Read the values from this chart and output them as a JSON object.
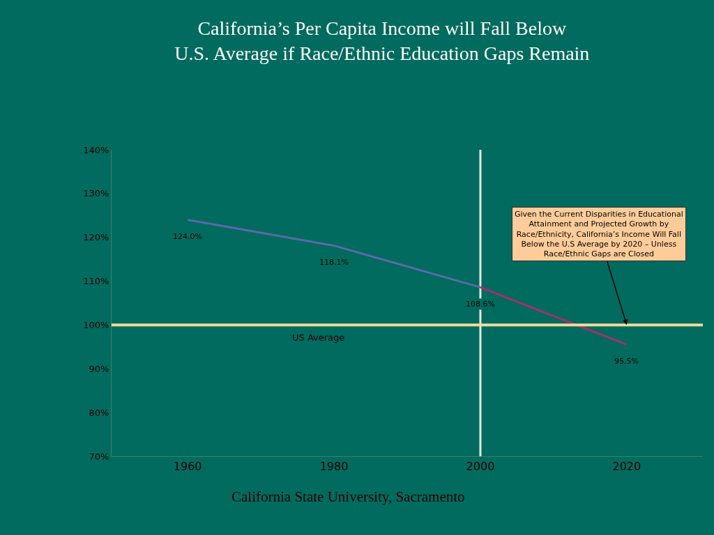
{
  "chart_data": {
    "type": "line",
    "title": "California’s Per Capita Income will Fall Below\nU.S. Average if Race/Ethnic Education Gaps Remain",
    "categories": [
      "1960",
      "1980",
      "2000",
      "2020"
    ],
    "series": [
      {
        "color": "#5a6aa8",
        "values": [
          124.0,
          118.1,
          108.6,
          null
        ],
        "value_labels": [
          "124.0%",
          "118.1%",
          "108.6%",
          null
        ]
      },
      {
        "color": "#a3306e",
        "values": [
          null,
          null,
          108.6,
          95.5
        ],
        "value_labels": [
          null,
          null,
          null,
          "95.5%"
        ]
      }
    ],
    "ylim": [
      70,
      140
    ],
    "yticks": [
      {
        "value": 70,
        "label": "70%"
      },
      {
        "value": 80,
        "label": "80%"
      },
      {
        "value": 90,
        "label": "90%"
      },
      {
        "value": 100,
        "label": "100%"
      },
      {
        "value": 110,
        "label": "110%"
      },
      {
        "value": 120,
        "label": "120%"
      },
      {
        "value": 130,
        "label": "130%"
      },
      {
        "value": 140,
        "label": "140%"
      }
    ],
    "ref_lines": [
      {
        "axis": "y",
        "value": 100,
        "label": "US Average",
        "color": "#f2dc9e"
      },
      {
        "axis": "x",
        "value": "2000",
        "color": "#e6e6e6"
      }
    ],
    "annotations": [
      {
        "text": "Given the Current Disparities in Educational\nAttainment and Projected Growth by\nRace/Ethnicity, California’s Income Will Fall\nBelow the U.S Average by 2020 – Unless\nRace/Ethnic Gaps are Closed",
        "x": "2020",
        "y": 100
      },
      "California State University, Sacramento"
    ],
    "grid": false,
    "marker": "none",
    "line_style": "solid"
  }
}
